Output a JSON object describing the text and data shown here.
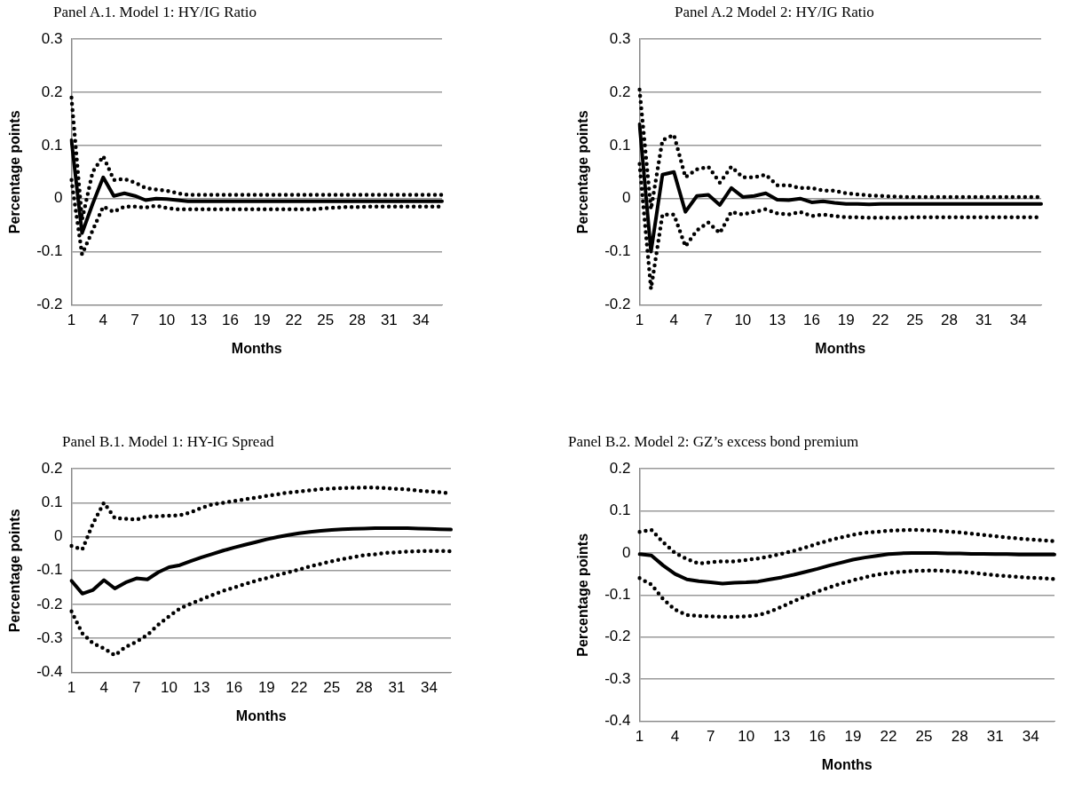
{
  "chart_data": [
    {
      "type": "line",
      "title": "Panel A.1. Model 1: HY/IG Ratio",
      "xlabel": "Months",
      "ylabel": "Percentage points",
      "categories": [
        "1",
        null,
        null,
        "4",
        null,
        null,
        "7",
        null,
        null,
        "10",
        null,
        null,
        "13",
        null,
        null,
        "16",
        null,
        null,
        "19",
        null,
        null,
        "22",
        null,
        null,
        "25",
        null,
        null,
        "28",
        null,
        null,
        "31",
        null,
        null,
        "34",
        null,
        null
      ],
      "series": [
        {
          "color": "#000000",
          "line_style": "solid",
          "values": [
            0.11,
            -0.065,
            -0.01,
            0.04,
            0.005,
            0.01,
            0.005,
            -0.003,
            0,
            -0.001,
            -0.003,
            -0.005,
            -0.005,
            -0.005,
            -0.005,
            -0.005,
            -0.005,
            -0.005,
            -0.005,
            -0.005,
            -0.005,
            -0.005,
            -0.005,
            -0.005,
            -0.005,
            -0.005,
            -0.005,
            -0.005,
            -0.005,
            -0.005,
            -0.005,
            -0.005,
            -0.005,
            -0.005,
            -0.005,
            -0.005
          ]
        },
        {
          "color": "#000000",
          "line_style": "dotted",
          "values": [
            0.19,
            -0.04,
            0.05,
            0.08,
            0.035,
            0.037,
            0.03,
            0.02,
            0.017,
            0.015,
            0.01,
            0.007,
            0.007,
            0.007,
            0.007,
            0.007,
            0.007,
            0.007,
            0.007,
            0.007,
            0.007,
            0.007,
            0.007,
            0.007,
            0.007,
            0.007,
            0.007,
            0.007,
            0.007,
            0.007,
            0.007,
            0.007,
            0.007,
            0.007,
            0.007,
            0.007
          ]
        },
        {
          "color": "#000000",
          "line_style": "dotted",
          "values": [
            0.035,
            -0.105,
            -0.06,
            -0.015,
            -0.025,
            -0.015,
            -0.015,
            -0.017,
            -0.013,
            -0.018,
            -0.02,
            -0.02,
            -0.02,
            -0.02,
            -0.02,
            -0.02,
            -0.02,
            -0.02,
            -0.02,
            -0.02,
            -0.02,
            -0.02,
            -0.02,
            -0.02,
            -0.018,
            -0.017,
            -0.016,
            -0.016,
            -0.015,
            -0.015,
            -0.015,
            -0.015,
            -0.015,
            -0.015,
            -0.015,
            -0.015
          ]
        }
      ],
      "ylim": [
        -0.2,
        0.3
      ],
      "yticks": [
        -0.2,
        -0.1,
        0,
        0.1,
        0.2,
        0.3
      ],
      "grid": "y"
    },
    {
      "type": "line",
      "title": "Panel A.2 Model 2: HY/IG Ratio",
      "xlabel": "Months",
      "ylabel": "Percentage points",
      "categories": [
        "1",
        null,
        null,
        "4",
        null,
        null,
        "7",
        null,
        null,
        "10",
        null,
        null,
        "13",
        null,
        null,
        "16",
        null,
        null,
        "19",
        null,
        null,
        "22",
        null,
        null,
        "25",
        null,
        null,
        "28",
        null,
        null,
        "31",
        null,
        null,
        "34",
        null,
        null
      ],
      "series": [
        {
          "color": "#000000",
          "line_style": "solid",
          "values": [
            0.14,
            -0.1,
            0.045,
            0.05,
            -0.025,
            0.005,
            0.007,
            -0.012,
            0.02,
            0.003,
            0.005,
            0.01,
            -0.002,
            -0.003,
            0,
            -0.007,
            -0.005,
            -0.008,
            -0.01,
            -0.01,
            -0.011,
            -0.01,
            -0.01,
            -0.01,
            -0.01,
            -0.01,
            -0.01,
            -0.01,
            -0.01,
            -0.01,
            -0.01,
            -0.01,
            -0.01,
            -0.01,
            -0.01,
            -0.01
          ]
        },
        {
          "color": "#000000",
          "line_style": "dotted",
          "values": [
            0.205,
            -0.02,
            0.11,
            0.12,
            0.04,
            0.055,
            0.06,
            0.03,
            0.06,
            0.04,
            0.04,
            0.045,
            0.025,
            0.025,
            0.02,
            0.02,
            0.015,
            0.015,
            0.01,
            0.008,
            0.006,
            0.005,
            0.004,
            0.003,
            0.003,
            0.003,
            0.003,
            0.003,
            0.003,
            0.003,
            0.003,
            0.003,
            0.003,
            0.003,
            0.003,
            0.003
          ]
        },
        {
          "color": "#000000",
          "line_style": "dotted",
          "values": [
            0.065,
            -0.17,
            -0.03,
            -0.03,
            -0.09,
            -0.06,
            -0.045,
            -0.065,
            -0.025,
            -0.03,
            -0.025,
            -0.02,
            -0.028,
            -0.03,
            -0.025,
            -0.033,
            -0.03,
            -0.033,
            -0.035,
            -0.035,
            -0.036,
            -0.036,
            -0.036,
            -0.036,
            -0.035,
            -0.035,
            -0.035,
            -0.035,
            -0.035,
            -0.035,
            -0.035,
            -0.035,
            -0.035,
            -0.035,
            -0.035,
            -0.035
          ]
        }
      ],
      "ylim": [
        -0.2,
        0.3
      ],
      "yticks": [
        -0.2,
        -0.1,
        0,
        0.1,
        0.2,
        0.3
      ],
      "grid": "y"
    },
    {
      "type": "line",
      "title": "Panel B.1. Model 1: HY-IG Spread",
      "xlabel": "Months",
      "ylabel": "Percentage points",
      "categories": [
        "1",
        null,
        null,
        "4",
        null,
        null,
        "7",
        null,
        null,
        "10",
        null,
        null,
        "13",
        null,
        null,
        "16",
        null,
        null,
        "19",
        null,
        null,
        "22",
        null,
        null,
        "25",
        null,
        null,
        "28",
        null,
        null,
        "31",
        null,
        null,
        "34",
        null,
        null
      ],
      "series": [
        {
          "color": "#000000",
          "line_style": "solid",
          "values": [
            -0.13,
            -0.168,
            -0.157,
            -0.128,
            -0.153,
            -0.135,
            -0.123,
            -0.126,
            -0.105,
            -0.09,
            -0.084,
            -0.072,
            -0.061,
            -0.051,
            -0.041,
            -0.032,
            -0.024,
            -0.016,
            -0.008,
            -0.001,
            0.005,
            0.01,
            0.014,
            0.017,
            0.02,
            0.022,
            0.023,
            0.024,
            0.025,
            0.025,
            0.025,
            0.025,
            0.024,
            0.023,
            0.022,
            0.021
          ]
        },
        {
          "color": "#000000",
          "line_style": "dotted",
          "values": [
            -0.027,
            -0.038,
            0.04,
            0.1,
            0.055,
            0.053,
            0.05,
            0.06,
            0.06,
            0.062,
            0.063,
            0.072,
            0.085,
            0.095,
            0.1,
            0.105,
            0.11,
            0.115,
            0.12,
            0.125,
            0.13,
            0.133,
            0.137,
            0.14,
            0.142,
            0.143,
            0.144,
            0.145,
            0.145,
            0.143,
            0.141,
            0.139,
            0.136,
            0.133,
            0.131,
            0.128
          ]
        },
        {
          "color": "#000000",
          "line_style": "dotted",
          "values": [
            -0.22,
            -0.285,
            -0.315,
            -0.33,
            -0.35,
            -0.325,
            -0.31,
            -0.29,
            -0.26,
            -0.235,
            -0.212,
            -0.198,
            -0.185,
            -0.172,
            -0.16,
            -0.15,
            -0.14,
            -0.13,
            -0.122,
            -0.113,
            -0.105,
            -0.097,
            -0.088,
            -0.08,
            -0.073,
            -0.066,
            -0.06,
            -0.055,
            -0.052,
            -0.048,
            -0.046,
            -0.044,
            -0.043,
            -0.042,
            -0.042,
            -0.043
          ]
        }
      ],
      "ylim": [
        -0.4,
        0.2
      ],
      "yticks": [
        -0.4,
        -0.3,
        -0.2,
        -0.1,
        0,
        0.1,
        0.2
      ],
      "grid": "y"
    },
    {
      "type": "line",
      "title": "Panel B.2. Model 2: GZ’s excess bond premium",
      "xlabel": "Months",
      "ylabel": "Percentage points",
      "categories": [
        "1",
        null,
        null,
        "4",
        null,
        null,
        "7",
        null,
        null,
        "10",
        null,
        null,
        "13",
        null,
        null,
        "16",
        null,
        null,
        "19",
        null,
        null,
        "22",
        null,
        null,
        "25",
        null,
        null,
        "28",
        null,
        null,
        "31",
        null,
        null,
        "34",
        null,
        null
      ],
      "series": [
        {
          "color": "#000000",
          "line_style": "solid",
          "values": [
            -0.003,
            -0.006,
            -0.03,
            -0.05,
            -0.063,
            -0.067,
            -0.07,
            -0.073,
            -0.071,
            -0.07,
            -0.068,
            -0.063,
            -0.058,
            -0.052,
            -0.045,
            -0.038,
            -0.03,
            -0.023,
            -0.016,
            -0.011,
            -0.007,
            -0.003,
            -0.001,
            0,
            0,
            0,
            -0.001,
            -0.001,
            -0.002,
            -0.002,
            -0.003,
            -0.003,
            -0.004,
            -0.004,
            -0.004,
            -0.004
          ]
        },
        {
          "color": "#000000",
          "line_style": "dotted",
          "values": [
            0.05,
            0.055,
            0.025,
            0,
            -0.015,
            -0.025,
            -0.022,
            -0.02,
            -0.02,
            -0.017,
            -0.013,
            -0.008,
            -0.002,
            0.005,
            0.013,
            0.022,
            0.03,
            0.037,
            0.043,
            0.048,
            0.05,
            0.053,
            0.054,
            0.055,
            0.054,
            0.053,
            0.051,
            0.049,
            0.046,
            0.043,
            0.04,
            0.037,
            0.034,
            0.032,
            0.03,
            0.028
          ]
        },
        {
          "color": "#000000",
          "line_style": "dotted",
          "values": [
            -0.06,
            -0.075,
            -0.11,
            -0.135,
            -0.148,
            -0.15,
            -0.151,
            -0.152,
            -0.152,
            -0.151,
            -0.148,
            -0.14,
            -0.128,
            -0.115,
            -0.103,
            -0.092,
            -0.082,
            -0.073,
            -0.065,
            -0.058,
            -0.052,
            -0.048,
            -0.045,
            -0.043,
            -0.042,
            -0.042,
            -0.043,
            -0.045,
            -0.047,
            -0.05,
            -0.053,
            -0.055,
            -0.057,
            -0.059,
            -0.06,
            -0.062
          ]
        }
      ],
      "ylim": [
        -0.4,
        0.2
      ],
      "yticks": [
        -0.4,
        -0.3,
        -0.2,
        -0.1,
        0,
        0.1,
        0.2
      ],
      "grid": "y"
    }
  ]
}
